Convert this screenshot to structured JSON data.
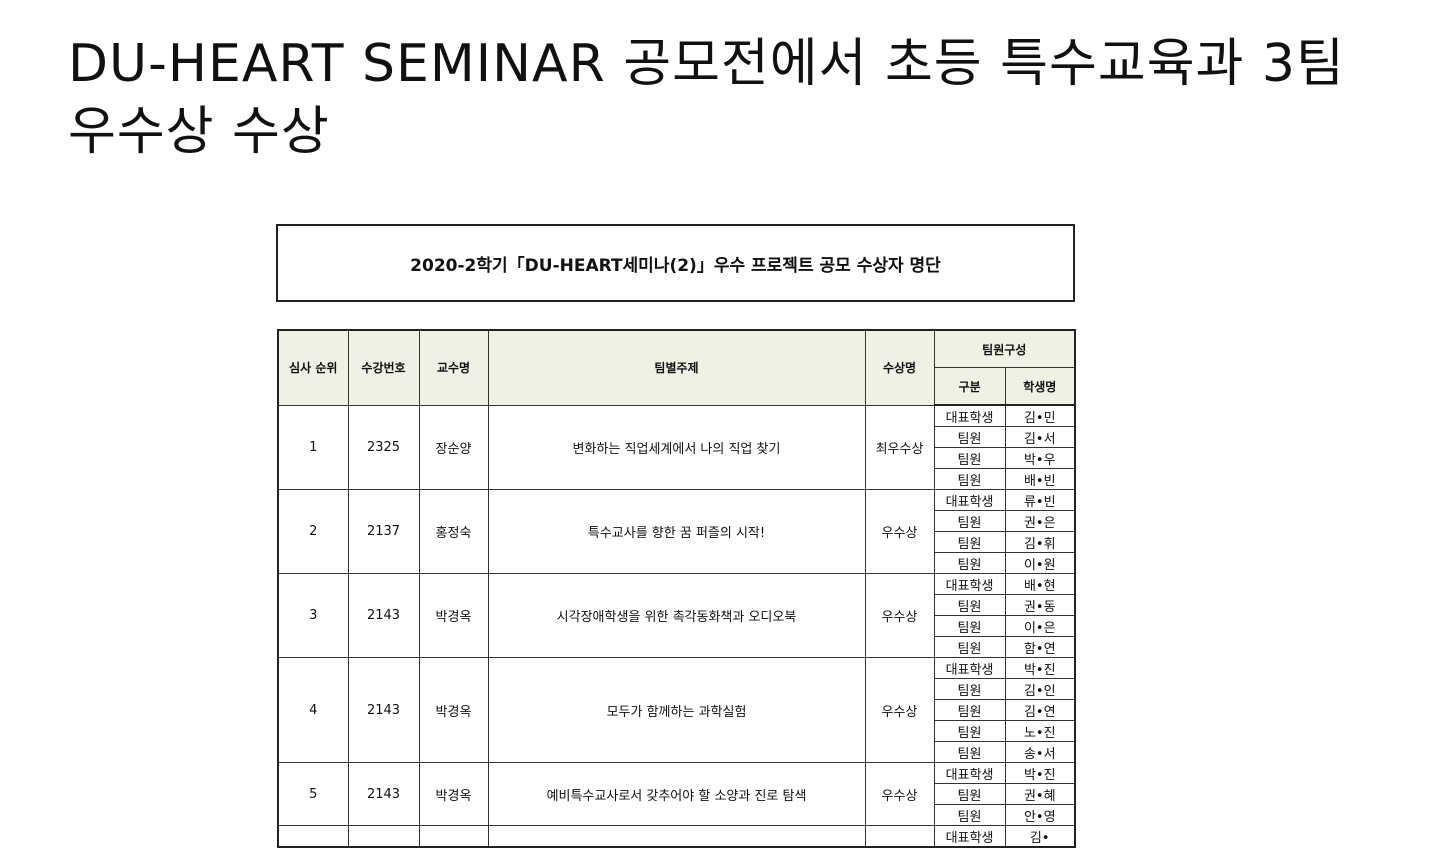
{
  "headline": "DU-HEART SEMINAR 공모전에서 초등 특수교육과 3팀 우수상 수상",
  "caption": "2020-2학기「DU-HEART세미나(2)」우수 프로젝트 공모 수상자 명단",
  "table": {
    "headers": {
      "rank": "심사 순위",
      "course_no": "수강번호",
      "professor": "교수명",
      "topic": "팀별주제",
      "award": "수상명",
      "team": "팀원구성",
      "role": "구분",
      "student": "학생명"
    },
    "rows": [
      {
        "rank": "1",
        "course_no": "2325",
        "professor": "장순양",
        "topic": "변화하는 직업세계에서 나의 직업 찾기",
        "award": "최우수상",
        "members": [
          {
            "role": "대표학생",
            "name": "김•민"
          },
          {
            "role": "팀원",
            "name": "김•서"
          },
          {
            "role": "팀원",
            "name": "박•우"
          },
          {
            "role": "팀원",
            "name": "배•빈"
          }
        ]
      },
      {
        "rank": "2",
        "course_no": "2137",
        "professor": "홍정숙",
        "topic": "특수교사를 향한 꿈 퍼즐의 시작!",
        "award": "우수상",
        "members": [
          {
            "role": "대표학생",
            "name": "류•빈"
          },
          {
            "role": "팀원",
            "name": "권•은"
          },
          {
            "role": "팀원",
            "name": "김•휘"
          },
          {
            "role": "팀원",
            "name": "이•원"
          }
        ]
      },
      {
        "rank": "3",
        "course_no": "2143",
        "professor": "박경옥",
        "topic": "시각장애학생을 위한 촉각동화책과 오디오북",
        "award": "우수상",
        "members": [
          {
            "role": "대표학생",
            "name": "배•현"
          },
          {
            "role": "팀원",
            "name": "권•동"
          },
          {
            "role": "팀원",
            "name": "이•은"
          },
          {
            "role": "팀원",
            "name": "함•연"
          }
        ]
      },
      {
        "rank": "4",
        "course_no": "2143",
        "professor": "박경옥",
        "topic": "모두가 함께하는 과학실험",
        "award": "우수상",
        "members": [
          {
            "role": "대표학생",
            "name": "박•진"
          },
          {
            "role": "팀원",
            "name": "김•인"
          },
          {
            "role": "팀원",
            "name": "김•연"
          },
          {
            "role": "팀원",
            "name": "노•진"
          },
          {
            "role": "팀원",
            "name": "송•서"
          }
        ]
      },
      {
        "rank": "5",
        "course_no": "2143",
        "professor": "박경옥",
        "topic": "예비특수교사로서 갖추어야 할 소양과 진로 탐색",
        "award": "우수상",
        "members": [
          {
            "role": "대표학생",
            "name": "박•진"
          },
          {
            "role": "팀원",
            "name": "권•혜"
          },
          {
            "role": "팀원",
            "name": "안•영"
          }
        ]
      },
      {
        "rank": "",
        "course_no": "",
        "professor": "",
        "topic": "",
        "award": "",
        "members": [
          {
            "role": "대표학생",
            "name": "김•"
          }
        ]
      }
    ]
  }
}
